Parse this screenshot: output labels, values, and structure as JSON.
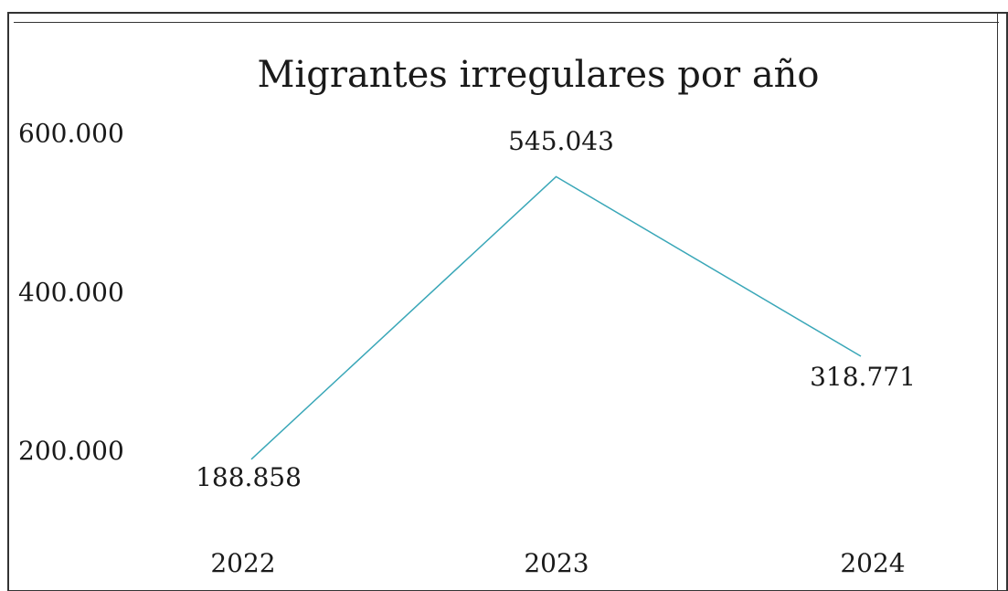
{
  "chart_data": {
    "type": "line",
    "title": "Migrantes irregulares por año",
    "categories": [
      "2022",
      "2023",
      "2024"
    ],
    "series": [
      {
        "values": [
          188858,
          545043,
          318771
        ],
        "labels": [
          "188.858",
          "545.043",
          "318.771"
        ],
        "color": "#3aa7b8"
      }
    ],
    "yticks": [
      {
        "value": 200000,
        "label": "200.000"
      },
      {
        "value": 400000,
        "label": "400.000"
      },
      {
        "value": 600000,
        "label": "600.000"
      }
    ],
    "ylim": [
      0,
      600000
    ],
    "grid": false,
    "xlabel": "",
    "ylabel": ""
  }
}
